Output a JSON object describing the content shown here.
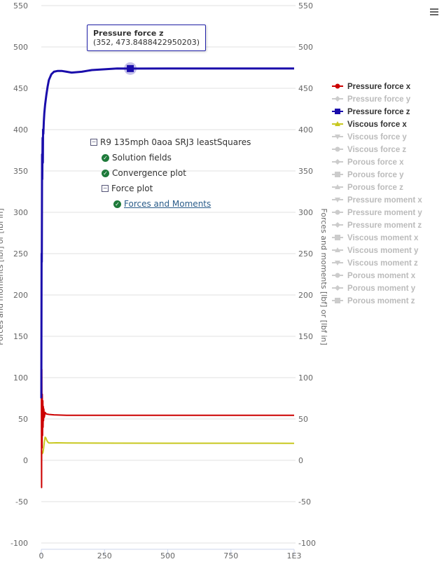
{
  "chart_data": {
    "type": "line",
    "xlabel": "",
    "ylabel": "Forces and moments [lbf] or [lbf in]",
    "ylabel_right": "Forces and moments [lbf] or [lbf in]",
    "xlim": [
      0,
      1000
    ],
    "ylim": [
      -100,
      550
    ],
    "x_ticks": [
      "0",
      "250",
      "500",
      "750",
      "1E3"
    ],
    "x_tick_values": [
      0,
      250,
      500,
      750,
      1000
    ],
    "y_ticks": [
      -100,
      -50,
      0,
      50,
      100,
      150,
      200,
      250,
      300,
      350,
      400,
      450,
      500,
      550
    ],
    "grid": true,
    "legend_position": "right",
    "legend": [
      {
        "name": "Pressure force x",
        "color": "#cc0000",
        "visible": true,
        "marker": "circle"
      },
      {
        "name": "Pressure force y",
        "color": "#cccccc",
        "visible": false,
        "marker": "diamond"
      },
      {
        "name": "Pressure force z",
        "color": "#1a0dab",
        "visible": true,
        "marker": "square"
      },
      {
        "name": "Viscous force x",
        "color": "#c8c820",
        "visible": true,
        "marker": "triangle"
      },
      {
        "name": "Viscous force y",
        "color": "#cccccc",
        "visible": false,
        "marker": "triangle-down"
      },
      {
        "name": "Viscous force z",
        "color": "#cccccc",
        "visible": false,
        "marker": "circle"
      },
      {
        "name": "Porous force x",
        "color": "#cccccc",
        "visible": false,
        "marker": "diamond"
      },
      {
        "name": "Porous force y",
        "color": "#cccccc",
        "visible": false,
        "marker": "square"
      },
      {
        "name": "Porous force z",
        "color": "#cccccc",
        "visible": false,
        "marker": "triangle"
      },
      {
        "name": "Pressure moment x",
        "color": "#cccccc",
        "visible": false,
        "marker": "triangle-down"
      },
      {
        "name": "Pressure moment y",
        "color": "#cccccc",
        "visible": false,
        "marker": "circle"
      },
      {
        "name": "Pressure moment z",
        "color": "#cccccc",
        "visible": false,
        "marker": "diamond"
      },
      {
        "name": "Viscous moment x",
        "color": "#cccccc",
        "visible": false,
        "marker": "square"
      },
      {
        "name": "Viscous moment y",
        "color": "#cccccc",
        "visible": false,
        "marker": "triangle"
      },
      {
        "name": "Viscous moment z",
        "color": "#cccccc",
        "visible": false,
        "marker": "triangle-down"
      },
      {
        "name": "Porous moment x",
        "color": "#cccccc",
        "visible": false,
        "marker": "circle"
      },
      {
        "name": "Porous moment y",
        "color": "#cccccc",
        "visible": false,
        "marker": "diamond"
      },
      {
        "name": "Porous moment z",
        "color": "#cccccc",
        "visible": false,
        "marker": "square"
      }
    ],
    "series": [
      {
        "name": "Pressure force z",
        "color": "#1a0dab",
        "x": [
          0,
          1,
          2,
          3,
          4,
          5,
          6,
          7,
          8,
          10,
          12,
          15,
          20,
          25,
          30,
          40,
          50,
          65,
          80,
          100,
          120,
          160,
          200,
          250,
          300,
          352,
          500,
          750,
          1000
        ],
        "y": [
          75,
          250,
          240,
          370,
          340,
          390,
          360,
          400,
          395,
          410,
          420,
          430,
          442,
          452,
          460,
          467,
          470,
          471,
          471,
          470,
          469,
          470,
          472,
          473,
          474,
          473.85,
          474,
          474,
          474
        ]
      },
      {
        "name": "Pressure force x",
        "color": "#cc0000",
        "x": [
          0,
          1,
          2,
          3,
          4,
          5,
          6,
          7,
          8,
          9,
          10,
          12,
          15,
          20,
          30,
          50,
          100,
          300,
          500,
          750,
          1000
        ],
        "y": [
          120,
          -33,
          110,
          15,
          80,
          30,
          72,
          40,
          65,
          48,
          62,
          52,
          58,
          56,
          55.5,
          55,
          54.5,
          54.5,
          54.5,
          54.5,
          54.5
        ]
      },
      {
        "name": "Viscous force x",
        "color": "#c8c820",
        "x": [
          0,
          3,
          6,
          9,
          12,
          15,
          18,
          22,
          26,
          30,
          40,
          60,
          100,
          300,
          500,
          750,
          1000
        ],
        "y": [
          10,
          8,
          9,
          14,
          22,
          28,
          27,
          24,
          22,
          21,
          21,
          21.2,
          21,
          20.8,
          20.7,
          20.7,
          20.6
        ]
      }
    ],
    "tooltip": {
      "series": "Pressure force z",
      "text": "(352, 473.8488422950203)",
      "x": 352,
      "y": 473.8488422950203
    }
  },
  "tree": {
    "root": "R9 135mph 0aoa SRJ3 leastSquares",
    "items": [
      "Solution fields",
      "Convergence plot"
    ],
    "force_plot": "Force plot",
    "forces_link": "Forces and Moments"
  }
}
